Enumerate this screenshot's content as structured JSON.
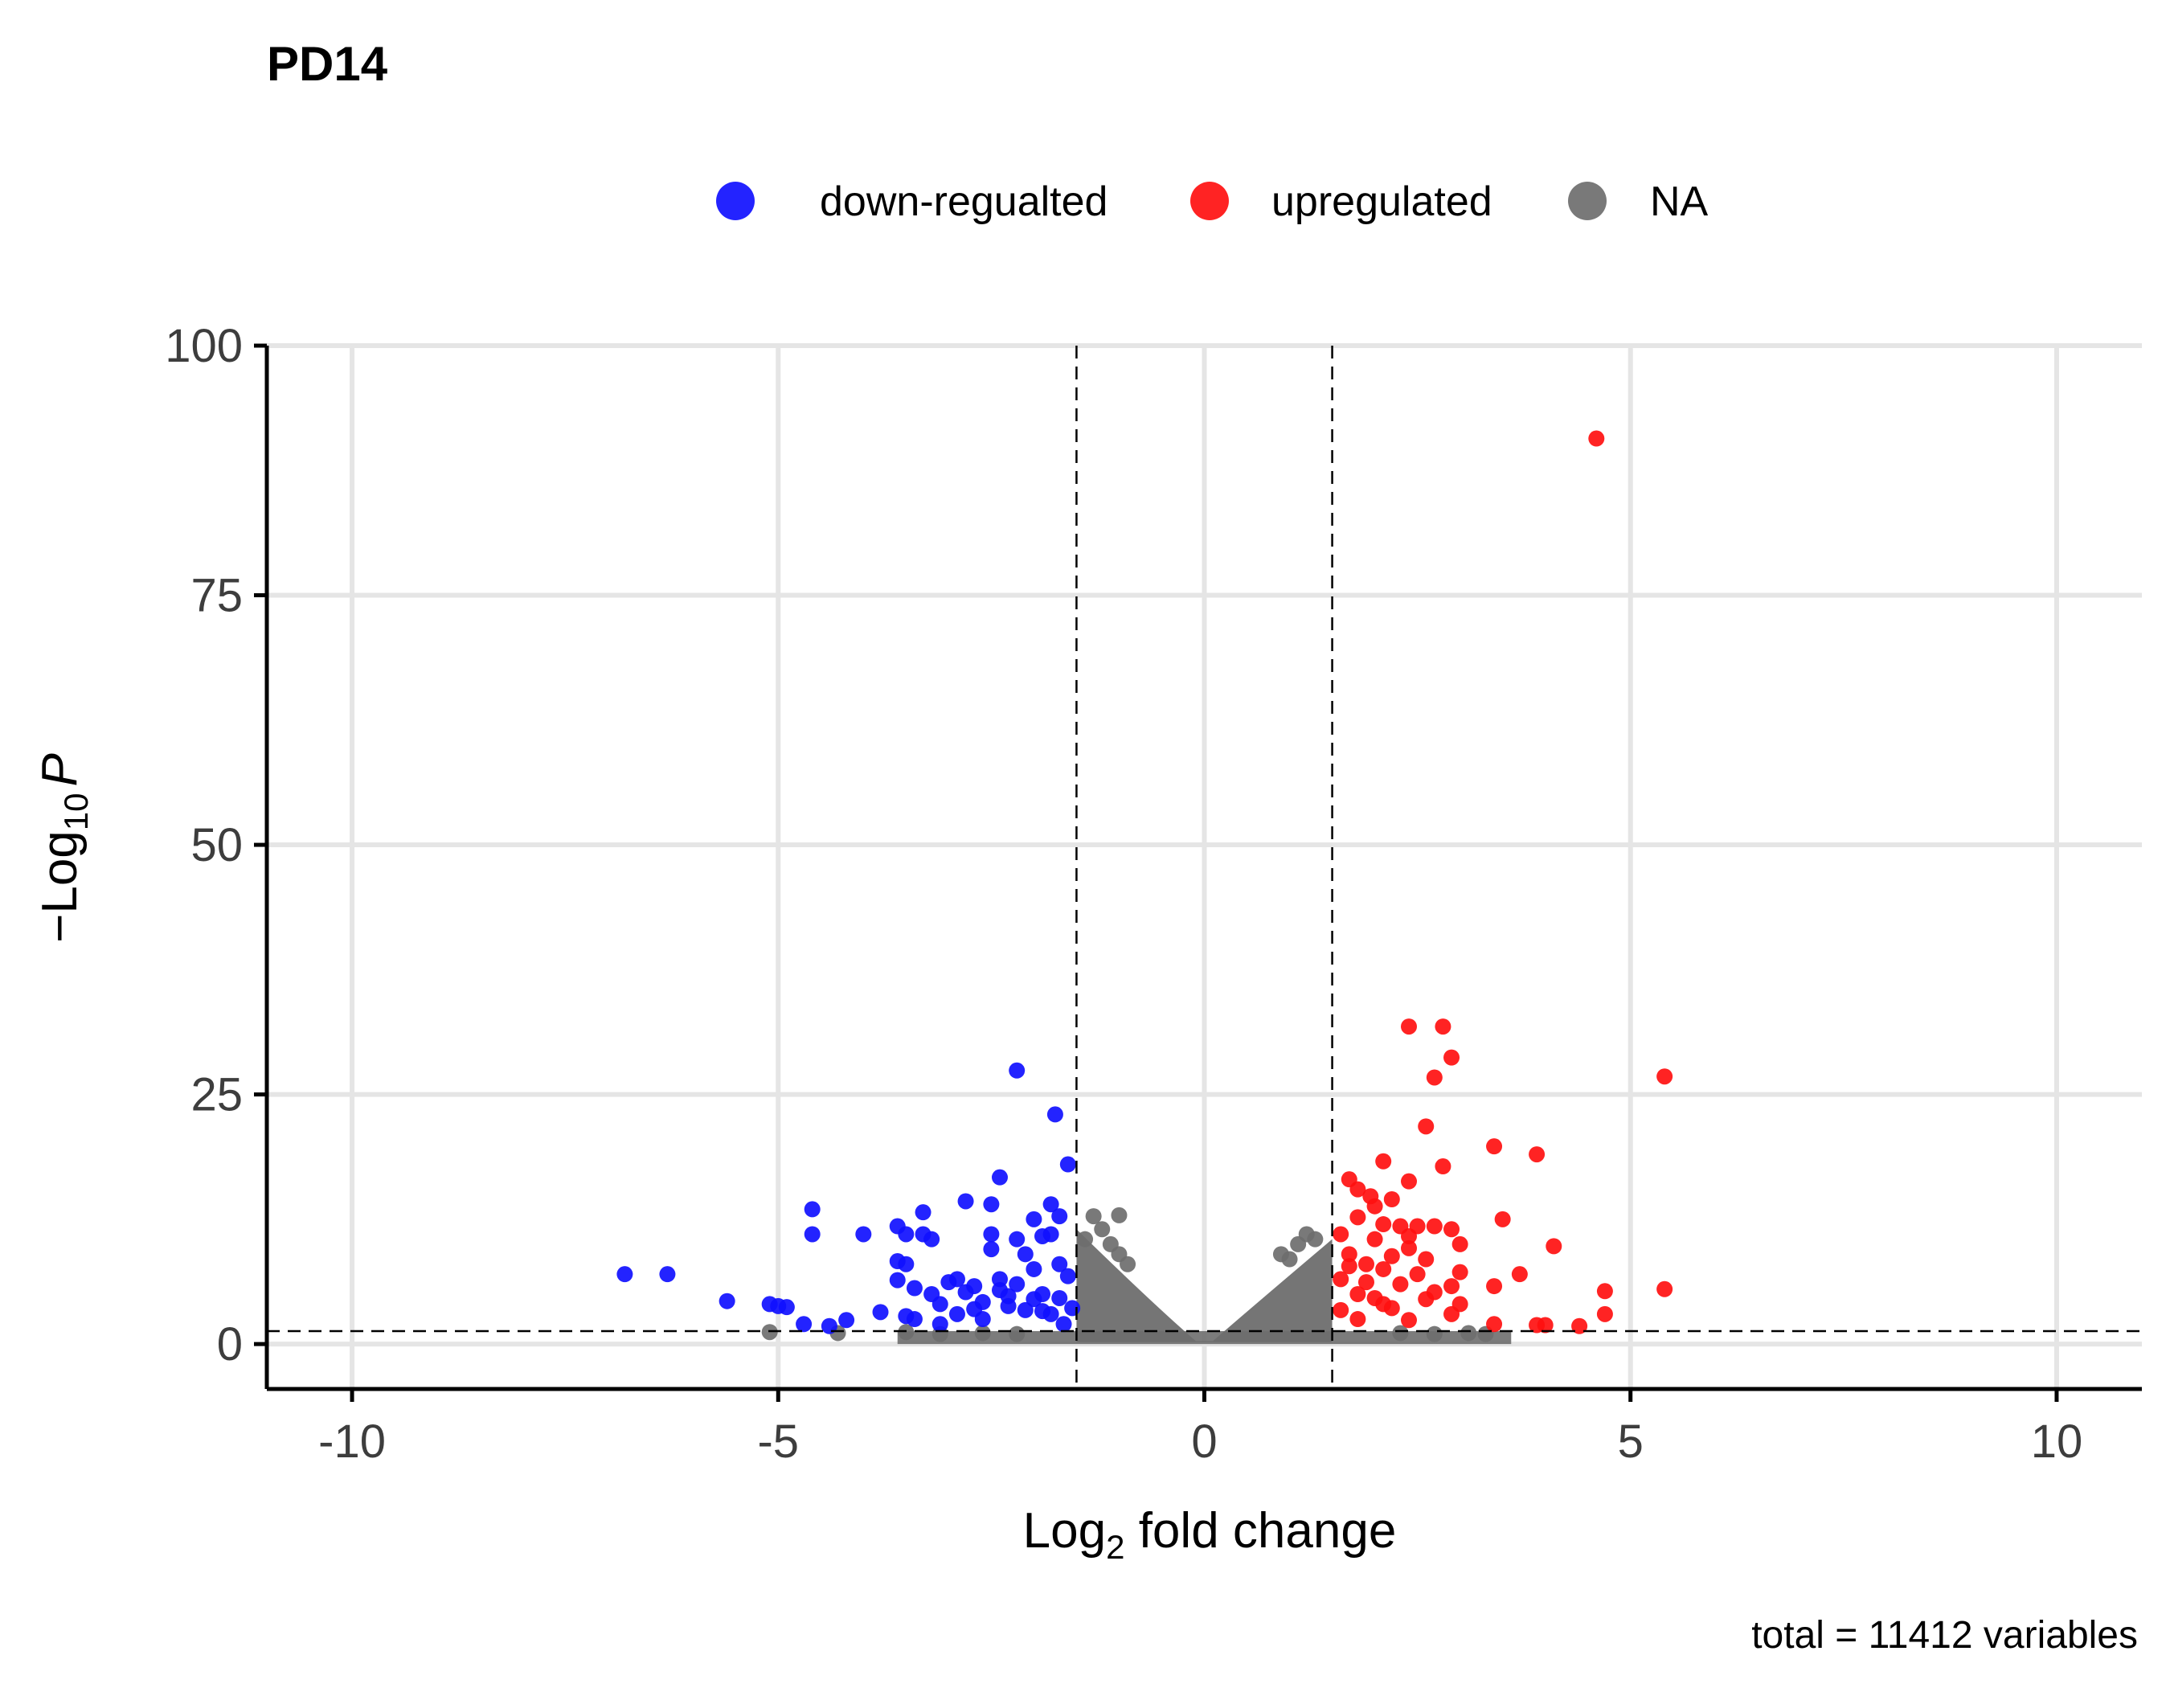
{
  "chart_data": {
    "type": "scatter",
    "title": "PD14",
    "xlabel": {
      "base": "Log",
      "sub": "2",
      "rest": " fold change"
    },
    "ylabel": {
      "prefix": "−Log",
      "sub": "10",
      "italic": "P"
    },
    "caption": "total = 11412 variables",
    "xlim": [
      -11,
      11
    ],
    "ylim": [
      -4.5,
      100
    ],
    "x_ticks": [
      -10,
      -5,
      0,
      5,
      10
    ],
    "x_tick_labels": [
      "-10",
      "-5",
      "0",
      "5",
      "10"
    ],
    "y_ticks": [
      0,
      25,
      50,
      75,
      100
    ],
    "y_tick_labels": [
      "0",
      "25",
      "50",
      "75",
      "100"
    ],
    "grid": true,
    "legend_position": "top",
    "thresholds": {
      "fold_change": [
        -1.5,
        1.5
      ],
      "neg_log10_p": 1.3
    },
    "series": [
      {
        "name": "down-regualted",
        "color": "#1010ff",
        "points": [
          [
            -6.8,
            7.0
          ],
          [
            -6.3,
            7.0
          ],
          [
            -5.6,
            4.3
          ],
          [
            -5.1,
            4.0
          ],
          [
            -5.0,
            3.8
          ],
          [
            -4.9,
            3.7
          ],
          [
            -4.7,
            2.0
          ],
          [
            -4.6,
            13.5
          ],
          [
            -4.6,
            11.0
          ],
          [
            -4.4,
            1.8
          ],
          [
            -4.2,
            2.4
          ],
          [
            -4.0,
            11.0
          ],
          [
            -3.8,
            3.2
          ],
          [
            -3.6,
            11.8
          ],
          [
            -3.5,
            11.0
          ],
          [
            -3.6,
            8.3
          ],
          [
            -3.5,
            8.0
          ],
          [
            -3.6,
            6.4
          ],
          [
            -3.5,
            2.8
          ],
          [
            -3.4,
            2.5
          ],
          [
            -3.3,
            13.2
          ],
          [
            -3.3,
            11.0
          ],
          [
            -3.2,
            10.5
          ],
          [
            -3.2,
            5.0
          ],
          [
            -3.1,
            2.0
          ],
          [
            -3.0,
            6.2
          ],
          [
            -2.9,
            6.5
          ],
          [
            -2.8,
            14.3
          ],
          [
            -2.8,
            5.2
          ],
          [
            -2.7,
            3.5
          ],
          [
            -2.6,
            2.5
          ],
          [
            -2.5,
            14.0
          ],
          [
            -2.5,
            11.0
          ],
          [
            -2.5,
            9.5
          ],
          [
            -2.4,
            16.7
          ],
          [
            -2.4,
            6.5
          ],
          [
            -2.3,
            4.8
          ],
          [
            -2.2,
            27.4
          ],
          [
            -2.2,
            10.5
          ],
          [
            -2.1,
            9.0
          ],
          [
            -2.1,
            3.4
          ],
          [
            -2.0,
            12.5
          ],
          [
            -2.0,
            7.5
          ],
          [
            -1.9,
            10.8
          ],
          [
            -1.9,
            5.0
          ],
          [
            -1.8,
            14.0
          ],
          [
            -1.8,
            11.0
          ],
          [
            -1.8,
            3.0
          ],
          [
            -1.75,
            23.0
          ],
          [
            -1.7,
            12.8
          ],
          [
            -1.7,
            8.0
          ],
          [
            -1.65,
            2.0
          ],
          [
            -1.6,
            18.0
          ],
          [
            -1.6,
            6.8
          ],
          [
            -1.55,
            3.6
          ],
          [
            -2.6,
            4.2
          ],
          [
            -2.3,
            3.8
          ],
          [
            -2.0,
            4.5
          ],
          [
            -1.9,
            3.3
          ],
          [
            -2.7,
            5.8
          ],
          [
            -3.4,
            5.6
          ],
          [
            -2.4,
            5.4
          ],
          [
            -1.7,
            4.6
          ],
          [
            -2.2,
            6.0
          ],
          [
            -2.9,
            3.0
          ],
          [
            -3.1,
            4.0
          ]
        ]
      },
      {
        "name": "upregulated",
        "color": "#ff1010",
        "points": [
          [
            4.6,
            90.7
          ],
          [
            2.4,
            31.8
          ],
          [
            2.8,
            31.8
          ],
          [
            2.9,
            28.7
          ],
          [
            2.7,
            26.7
          ],
          [
            5.4,
            26.8
          ],
          [
            2.6,
            21.8
          ],
          [
            3.4,
            19.8
          ],
          [
            3.9,
            19.0
          ],
          [
            2.1,
            18.3
          ],
          [
            2.8,
            17.8
          ],
          [
            1.7,
            16.5
          ],
          [
            2.4,
            16.3
          ],
          [
            1.8,
            15.5
          ],
          [
            1.95,
            14.8
          ],
          [
            2.2,
            14.5
          ],
          [
            2.0,
            13.8
          ],
          [
            1.8,
            12.7
          ],
          [
            2.1,
            12.0
          ],
          [
            3.5,
            12.5
          ],
          [
            2.3,
            11.8
          ],
          [
            2.5,
            11.8
          ],
          [
            2.7,
            11.8
          ],
          [
            2.9,
            11.5
          ],
          [
            1.6,
            11.0
          ],
          [
            2.0,
            10.5
          ],
          [
            2.4,
            10.8
          ],
          [
            3.0,
            10.0
          ],
          [
            4.1,
            9.8
          ],
          [
            1.7,
            9.0
          ],
          [
            2.2,
            8.8
          ],
          [
            2.6,
            8.5
          ],
          [
            1.9,
            8.0
          ],
          [
            2.1,
            7.5
          ],
          [
            3.0,
            7.2
          ],
          [
            3.7,
            7.0
          ],
          [
            1.6,
            6.5
          ],
          [
            2.3,
            6.0
          ],
          [
            2.9,
            5.8
          ],
          [
            3.4,
            5.8
          ],
          [
            4.7,
            5.3
          ],
          [
            5.4,
            5.5
          ],
          [
            1.8,
            5.0
          ],
          [
            2.0,
            4.6
          ],
          [
            2.6,
            4.5
          ],
          [
            3.0,
            4.0
          ],
          [
            2.2,
            3.6
          ],
          [
            1.6,
            3.4
          ],
          [
            2.9,
            3.0
          ],
          [
            4.7,
            3.0
          ],
          [
            1.8,
            2.5
          ],
          [
            2.4,
            2.4
          ],
          [
            3.4,
            2.0
          ],
          [
            3.9,
            1.9
          ],
          [
            4.0,
            1.9
          ],
          [
            4.4,
            1.8
          ],
          [
            2.1,
            4.0
          ],
          [
            1.7,
            7.8
          ],
          [
            2.5,
            7.0
          ],
          [
            1.9,
            6.2
          ],
          [
            2.7,
            5.2
          ],
          [
            2.4,
            9.6
          ]
        ]
      },
      {
        "name": "NA",
        "color": "#6e6e6e",
        "points": [
          [
            -5.1,
            1.2
          ],
          [
            -4.3,
            1.1
          ],
          [
            -3.5,
            1.2
          ],
          [
            -3.1,
            1.0
          ],
          [
            -2.6,
            1.1
          ],
          [
            -2.2,
            1.0
          ],
          [
            -1.3,
            12.8
          ],
          [
            -1.2,
            11.5
          ],
          [
            -1.0,
            9.0
          ],
          [
            -0.9,
            8.0
          ],
          [
            -1.4,
            10.5
          ],
          [
            -1.1,
            10.0
          ],
          [
            -1.0,
            12.9
          ],
          [
            0.9,
            9.0
          ],
          [
            1.1,
            10.0
          ],
          [
            1.2,
            11.0
          ],
          [
            1.3,
            10.5
          ],
          [
            1.0,
            8.5
          ],
          [
            2.3,
            1.1
          ],
          [
            2.7,
            1.0
          ],
          [
            3.1,
            1.1
          ],
          [
            3.3,
            1.0
          ]
        ]
      }
    ]
  }
}
